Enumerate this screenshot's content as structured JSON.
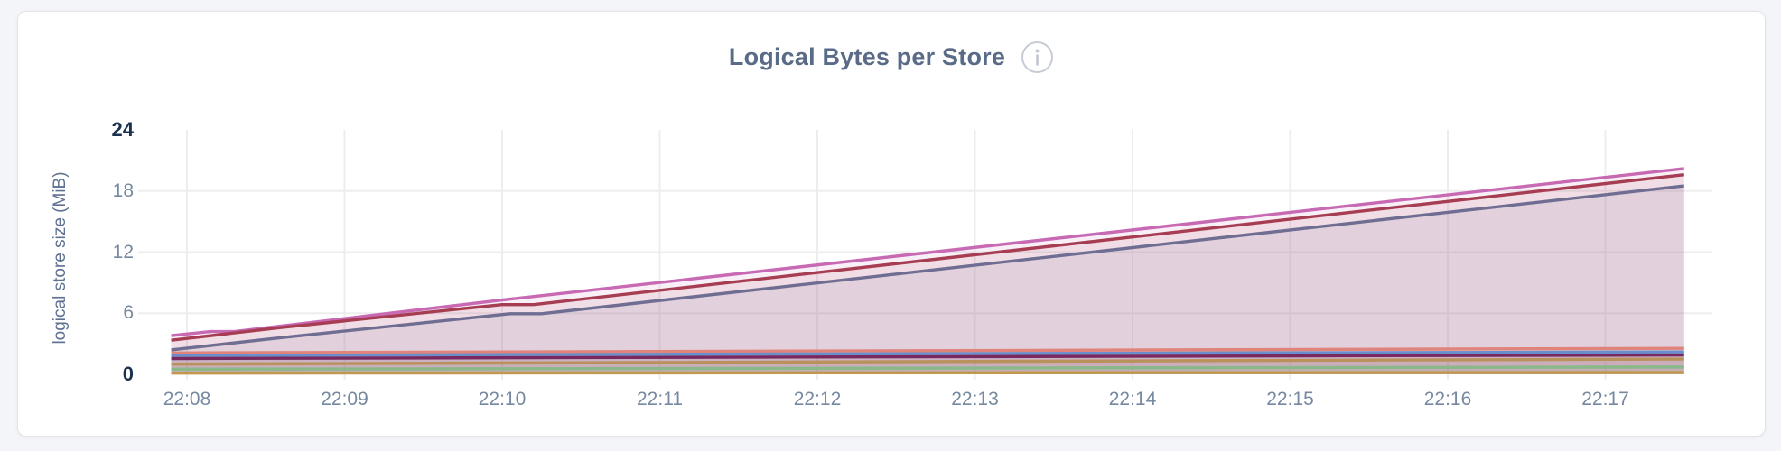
{
  "page": {
    "background": "#f4f5f8"
  },
  "header": {
    "title": "Logical Bytes per Store",
    "info_icon": "info-circle-icon"
  },
  "chart_data": {
    "type": "area",
    "title": "Logical Bytes per Store",
    "ylabel": "logical store size (MiB)",
    "xlabel": "",
    "ylim": [
      0,
      24
    ],
    "grid": true,
    "legend": "none",
    "x_unit": "time (HH:MM)",
    "x_range_minutes": [
      7.9,
      17.5
    ],
    "fill_opacity": 0.1,
    "colors": {
      "grid": "#ededef",
      "tick_emphasis": "#1b304f",
      "tick_normal": "#7689a0",
      "title": "#5a6b87",
      "axis_label": "#5f7292",
      "info_icon": "#c6ccd4"
    },
    "y_ticks": [
      {
        "value": 0,
        "label": "0",
        "emphasis": true,
        "gridline": false
      },
      {
        "value": 6,
        "label": "6",
        "emphasis": false,
        "gridline": true
      },
      {
        "value": 12,
        "label": "12",
        "emphasis": false,
        "gridline": true
      },
      {
        "value": 18,
        "label": "18",
        "emphasis": false,
        "gridline": true
      },
      {
        "value": 24,
        "label": "24",
        "emphasis": true,
        "gridline": false
      }
    ],
    "x_ticks": [
      {
        "min": 8,
        "label": "22:08"
      },
      {
        "min": 9,
        "label": "22:09"
      },
      {
        "min": 10,
        "label": "22:10"
      },
      {
        "min": 11,
        "label": "22:11"
      },
      {
        "min": 12,
        "label": "22:12"
      },
      {
        "min": 13,
        "label": "22:13"
      },
      {
        "min": 14,
        "label": "22:14"
      },
      {
        "min": 15,
        "label": "22:15"
      },
      {
        "min": 16,
        "label": "22:16"
      },
      {
        "min": 17,
        "label": "22:17"
      }
    ],
    "series": [
      {
        "id": "series-1",
        "color": "#c869b3",
        "points": [
          [
            7.9,
            3.8
          ],
          [
            8.15,
            4.2
          ],
          [
            8.3,
            4.2
          ],
          [
            10.0,
            7.3
          ],
          [
            17.5,
            20.2
          ]
        ]
      },
      {
        "id": "series-2",
        "color": "#a63d52",
        "points": [
          [
            7.9,
            3.35
          ],
          [
            8.6,
            4.6
          ],
          [
            10.0,
            6.85
          ],
          [
            10.2,
            6.85
          ],
          [
            17.5,
            19.6
          ]
        ]
      },
      {
        "id": "series-3",
        "color": "#6f6e92",
        "points": [
          [
            7.9,
            2.4
          ],
          [
            8.6,
            3.6
          ],
          [
            10.05,
            5.95
          ],
          [
            10.25,
            5.95
          ],
          [
            17.5,
            18.5
          ]
        ]
      },
      {
        "id": "series-4",
        "color": "#e0837b",
        "points": [
          [
            7.9,
            2.1
          ],
          [
            17.5,
            2.55
          ]
        ]
      },
      {
        "id": "series-5",
        "color": "#6a8dcb",
        "points": [
          [
            7.9,
            1.85
          ],
          [
            17.5,
            2.2
          ]
        ]
      },
      {
        "id": "series-6",
        "color": "#782a60",
        "points": [
          [
            7.9,
            1.55
          ],
          [
            17.5,
            1.9
          ]
        ]
      },
      {
        "id": "series-7",
        "color": "#b9915a",
        "points": [
          [
            7.9,
            1.0
          ],
          [
            17.5,
            1.5
          ]
        ]
      },
      {
        "id": "series-8",
        "color": "#8bb88b",
        "points": [
          [
            7.9,
            0.5
          ],
          [
            17.5,
            0.72
          ]
        ]
      },
      {
        "id": "series-9",
        "color": "#c0984f",
        "points": [
          [
            7.9,
            0.12
          ],
          [
            17.5,
            0.18
          ]
        ]
      }
    ]
  }
}
